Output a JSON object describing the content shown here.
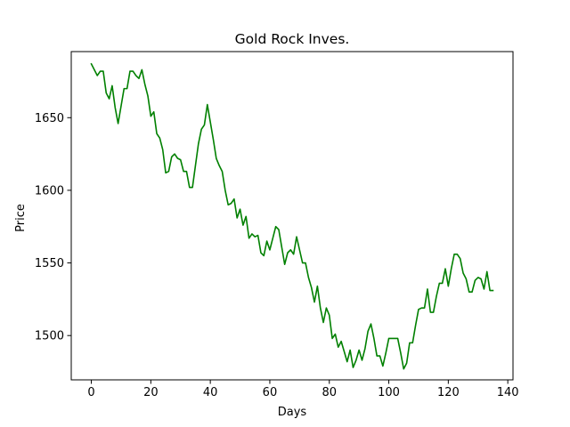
{
  "chart_data": {
    "type": "line",
    "title": "Gold Rock Inves.",
    "xlabel": "Days",
    "ylabel": "Price",
    "xlim": [
      -6.75,
      141.75
    ],
    "ylim": [
      1469.5,
      1695.5
    ],
    "xticks": [
      0,
      20,
      40,
      60,
      80,
      100,
      120,
      140
    ],
    "yticks": [
      1500,
      1550,
      1600,
      1650
    ],
    "grid": false,
    "legend": "none",
    "series": [
      {
        "color": "#008000",
        "x": [
          0,
          1,
          2,
          3,
          4,
          5,
          6,
          7,
          8,
          9,
          10,
          11,
          12,
          13,
          14,
          15,
          16,
          17,
          18,
          19,
          20,
          21,
          22,
          23,
          24,
          25,
          26,
          27,
          28,
          29,
          30,
          31,
          32,
          33,
          34,
          35,
          36,
          37,
          38,
          39,
          40,
          41,
          42,
          43,
          44,
          45,
          46,
          47,
          48,
          49,
          50,
          51,
          52,
          53,
          54,
          55,
          56,
          57,
          58,
          59,
          60,
          61,
          62,
          63,
          64,
          65,
          66,
          67,
          68,
          69,
          70,
          71,
          72,
          73,
          74,
          75,
          76,
          77,
          78,
          79,
          80,
          81,
          82,
          83,
          84,
          85,
          86,
          87,
          88,
          89,
          90,
          91,
          92,
          93,
          94,
          95,
          96,
          97,
          98,
          99,
          100,
          101,
          102,
          103,
          104,
          105,
          106,
          107,
          108,
          109,
          110,
          111,
          112,
          113,
          114,
          115,
          116,
          117,
          118,
          119,
          120,
          121,
          122,
          123,
          124,
          125,
          126,
          127,
          128,
          129,
          130,
          131,
          132,
          133,
          134,
          135
        ],
        "y": [
          1687,
          1683,
          1679,
          1682,
          1682,
          1667,
          1663,
          1672,
          1657,
          1646,
          1658,
          1670,
          1670,
          1682,
          1682,
          1679,
          1677,
          1683,
          1673,
          1665,
          1651,
          1654,
          1639,
          1636,
          1628,
          1612,
          1613,
          1623,
          1625,
          1622,
          1621,
          1613,
          1613,
          1602,
          1602,
          1617,
          1632,
          1642,
          1645,
          1659,
          1647,
          1635,
          1622,
          1617,
          1613,
          1600,
          1590,
          1591,
          1594,
          1581,
          1587,
          1576,
          1582,
          1567,
          1570,
          1568,
          1569,
          1557,
          1555,
          1565,
          1559,
          1567,
          1575,
          1573,
          1561,
          1549,
          1557,
          1559,
          1556,
          1568,
          1559,
          1550,
          1550,
          1540,
          1533,
          1523,
          1534,
          1519,
          1509,
          1519,
          1514,
          1498,
          1501,
          1492,
          1496,
          1489,
          1482,
          1490,
          1478,
          1483,
          1490,
          1483,
          1491,
          1503,
          1508,
          1498,
          1486,
          1486,
          1479,
          1488,
          1498,
          1498,
          1498,
          1498,
          1488,
          1477,
          1481,
          1495,
          1495,
          1507,
          1518,
          1519,
          1519,
          1532,
          1516,
          1516,
          1527,
          1536,
          1536,
          1546,
          1534,
          1546,
          1556,
          1556,
          1553,
          1543,
          1539,
          1530,
          1530,
          1538,
          1540,
          1539,
          1532,
          1544,
          1531,
          1531
        ]
      }
    ]
  }
}
